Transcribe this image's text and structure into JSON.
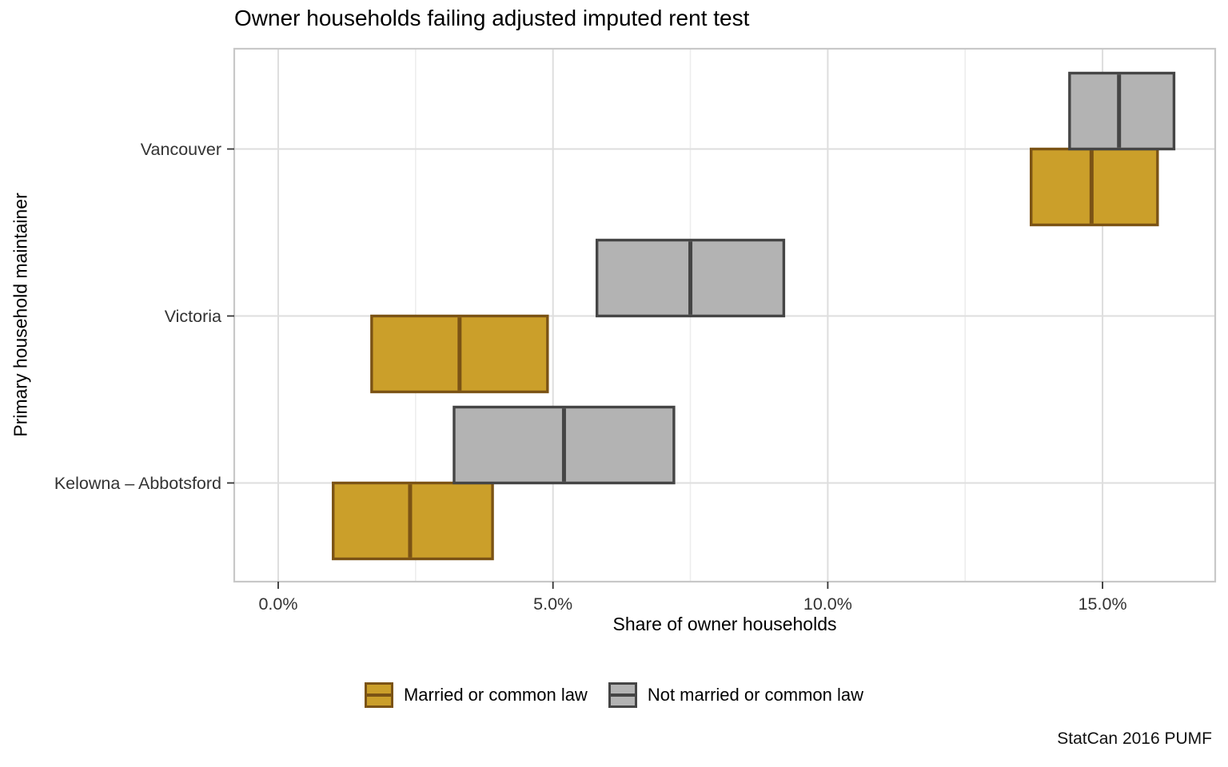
{
  "chart_data": {
    "type": "crossbar",
    "orientation": "horizontal",
    "title": "Owner households failing adjusted imputed rent test",
    "xlabel": "Share of owner households",
    "ylabel": "Primary household maintainer",
    "caption": "StatCan 2016 PUMF",
    "unit": "percent",
    "categories": [
      "Vancouver",
      "Victoria",
      "Kelowna – Abbotsford"
    ],
    "xlim": [
      -0.8,
      17.05
    ],
    "x_ticks": [
      {
        "value": 0,
        "label": "0.0%"
      },
      {
        "value": 5,
        "label": "5.0%"
      },
      {
        "value": 10,
        "label": "10.0%"
      },
      {
        "value": 15,
        "label": "15.0%"
      }
    ],
    "x_minor_ticks": [
      2.5,
      7.5,
      12.5
    ],
    "grid": true,
    "legend_position": "bottom",
    "series": [
      {
        "name": "Married or common law",
        "fill": "#CB9F2A",
        "stroke": "#7B5315",
        "dodge": "below",
        "data": [
          {
            "category": "Vancouver",
            "low": 13.7,
            "mid": 14.8,
            "high": 16.0
          },
          {
            "category": "Victoria",
            "low": 1.7,
            "mid": 3.3,
            "high": 4.9
          },
          {
            "category": "Kelowna – Abbotsford",
            "low": 1.0,
            "mid": 2.4,
            "high": 3.9
          }
        ]
      },
      {
        "name": "Not married or common law",
        "fill": "#B3B3B3",
        "stroke": "#454545",
        "dodge": "above",
        "data": [
          {
            "category": "Vancouver",
            "low": 14.4,
            "mid": 15.3,
            "high": 16.3
          },
          {
            "category": "Victoria",
            "low": 5.8,
            "mid": 7.5,
            "high": 9.2
          },
          {
            "category": "Kelowna – Abbotsford",
            "low": 3.2,
            "mid": 5.2,
            "high": 7.2
          }
        ]
      }
    ],
    "colors": {
      "grid_major": "#dedede",
      "grid_minor": "#ededed",
      "panel_border": "#c8c8c8",
      "axis_text": "#333333",
      "tick_mark": "#333333"
    }
  }
}
